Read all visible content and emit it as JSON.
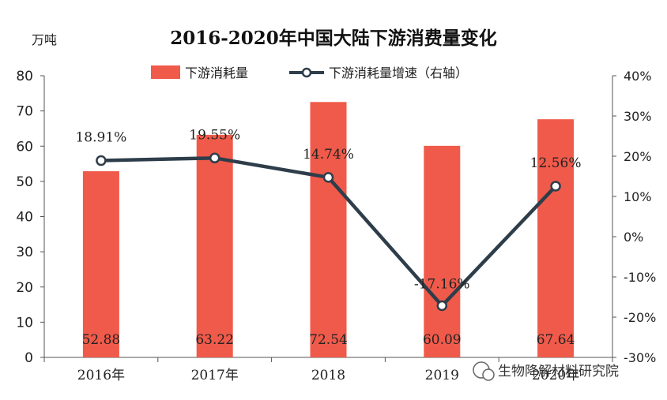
{
  "chart_data": {
    "type": "bar",
    "title": "2016-2020年中国大陆下游消费量变化",
    "y_unit": "万吨",
    "categories": [
      "2016年",
      "2017年",
      "2018",
      "2019",
      "2020年"
    ],
    "series": [
      {
        "name": "下游消耗量",
        "type": "bar",
        "axis": "left",
        "values": [
          52.88,
          63.22,
          72.54,
          60.09,
          67.64
        ],
        "labels": [
          "52.88",
          "63.22",
          "72.54",
          "60.09",
          "67.64"
        ],
        "color": "#f05a4a"
      },
      {
        "name": "下游消耗量增速（右轴）",
        "type": "line",
        "axis": "right",
        "values": [
          18.91,
          19.55,
          14.74,
          -17.16,
          12.56
        ],
        "labels": [
          "18.91%",
          "19.55%",
          "14.74%",
          "-17.16%",
          "12.56%"
        ],
        "color": "#2e3d4a"
      }
    ],
    "ylim": [
      0,
      80
    ],
    "y_ticks": [
      "0",
      "10",
      "20",
      "30",
      "40",
      "50",
      "60",
      "70",
      "80"
    ],
    "y2lim": [
      -30,
      40
    ],
    "y2_ticks": [
      "-30%",
      "-20%",
      "-10%",
      "0%",
      "10%",
      "20%",
      "30%",
      "40%"
    ],
    "legend": "top-center",
    "grid": false
  },
  "watermark": "生物降解材料研究院"
}
